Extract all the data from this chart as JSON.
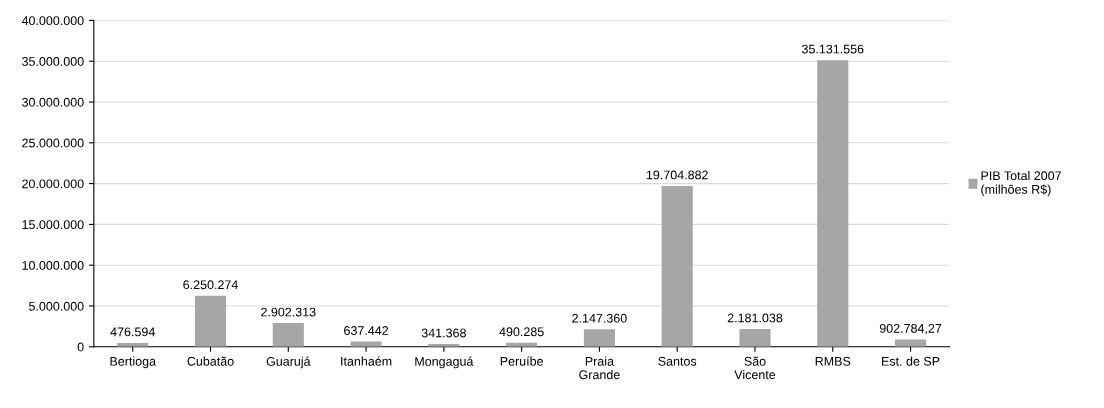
{
  "chart_data": {
    "type": "bar",
    "categories": [
      "Bertioga",
      "Cubatão",
      "Guarujá",
      "Itanhaém",
      "Mongaguá",
      "Peruíbe",
      "Praia\nGrande",
      "Santos",
      "São\nVicente",
      "RMBS",
      "Est. de SP"
    ],
    "series": [
      {
        "name": "PIB Total 2007\n(milhões R$)",
        "color": "#a6a6a6",
        "values": [
          476594,
          6250274,
          2902313,
          637442,
          341368,
          490285,
          2147360,
          19704882,
          2181038,
          35131556,
          902784.27
        ],
        "value_labels": [
          "476.594",
          "6.250.274",
          "2.902.313",
          "637.442",
          "341.368",
          "490.285",
          "2.147.360",
          "19.704.882",
          "2.181.038",
          "35.131.556",
          "902.784,27"
        ]
      }
    ],
    "ylim": [
      0,
      40000000
    ],
    "yticks": [
      {
        "value": 0,
        "label": "0"
      },
      {
        "value": 5000000,
        "label": "5.000.000"
      },
      {
        "value": 10000000,
        "label": "10.000.000"
      },
      {
        "value": 15000000,
        "label": "15.000.000"
      },
      {
        "value": 20000000,
        "label": "20.000.000"
      },
      {
        "value": 25000000,
        "label": "25.000.000"
      },
      {
        "value": 30000000,
        "label": "30.000.000"
      },
      {
        "value": 35000000,
        "label": "35.000.000"
      },
      {
        "value": 40000000,
        "label": "40.000.000"
      }
    ],
    "grid": "y",
    "legend": "right"
  }
}
